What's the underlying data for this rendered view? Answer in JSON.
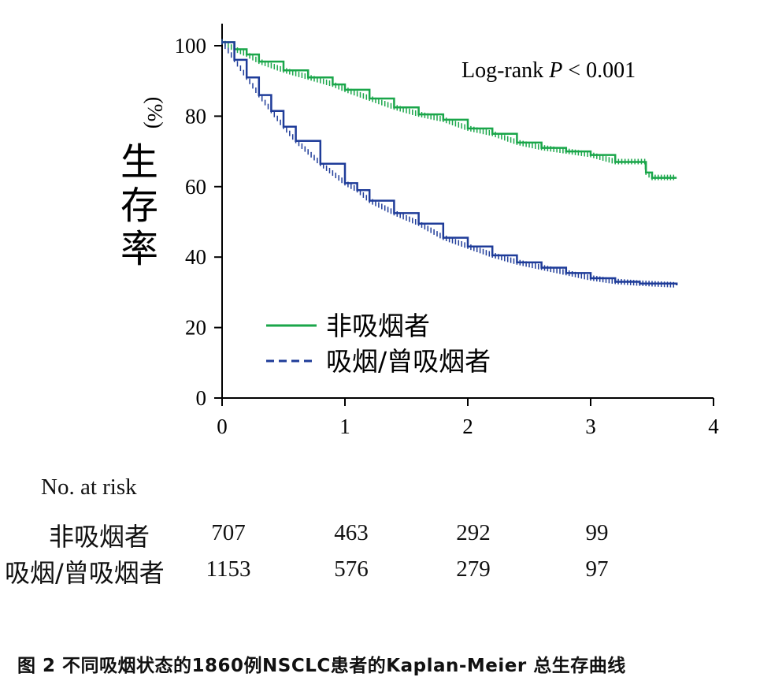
{
  "chart_data": {
    "type": "line",
    "ylabel_text": "生存率",
    "ylabel_unit": "(%)",
    "annotation": "Log-rank P < 0.001",
    "annotation_parts": [
      "Log-rank ",
      "P",
      " < 0.001"
    ],
    "xlim": [
      0,
      4
    ],
    "ylim": [
      0,
      100
    ],
    "xticks": [
      "0",
      "1",
      "2",
      "3",
      "4"
    ],
    "yticks": [
      "0",
      "20",
      "40",
      "60",
      "80",
      "100"
    ],
    "legend_position": "lower-left",
    "series": [
      {
        "name": "非吸烟者",
        "color": "#1aa64a",
        "style": "solid",
        "x": [
          0,
          0.1,
          0.2,
          0.3,
          0.5,
          0.7,
          0.9,
          1.0,
          1.2,
          1.4,
          1.6,
          1.8,
          2.0,
          2.2,
          2.4,
          2.6,
          2.8,
          3.0,
          3.2,
          3.44,
          3.45,
          3.5,
          3.7
        ],
        "values": [
          101,
          99,
          97.5,
          95.5,
          93,
          91,
          89,
          87.5,
          85,
          82.5,
          80.5,
          79,
          76.5,
          75,
          72.5,
          71,
          70,
          69,
          67,
          67,
          64,
          62.5,
          62.5
        ]
      },
      {
        "name": "吸烟/曾吸烟者",
        "color": "#1f3c99",
        "style": "dashed",
        "x": [
          0,
          0.1,
          0.2,
          0.3,
          0.4,
          0.5,
          0.6,
          0.8,
          1.0,
          1.1,
          1.2,
          1.4,
          1.6,
          1.8,
          2.0,
          2.2,
          2.4,
          2.6,
          2.8,
          3.0,
          3.2,
          3.4,
          3.7
        ],
        "values": [
          101,
          96,
          91,
          86,
          81.5,
          77,
          73,
          66.5,
          61,
          59,
          56,
          52.5,
          49.5,
          45.5,
          43,
          40.5,
          38.5,
          37,
          35.5,
          34,
          33,
          32.5,
          32
        ]
      }
    ]
  },
  "risk_table": {
    "title": "No. at risk",
    "rows": [
      {
        "label": "非吸烟者",
        "values": [
          "707",
          "463",
          "292",
          "99"
        ]
      },
      {
        "label": "吸烟/曾吸烟者",
        "values": [
          "1153",
          "576",
          "279",
          "97"
        ]
      }
    ]
  },
  "caption": {
    "prefix": "图 2 ",
    "text": "不同吸烟状态的1860例NSCLC患者的Kaplan-Meier 总生存曲线"
  }
}
